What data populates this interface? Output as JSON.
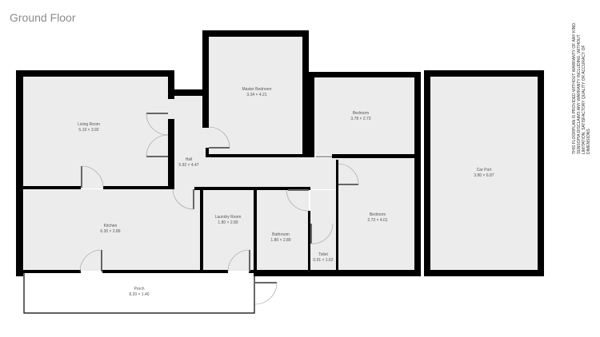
{
  "title": "Ground Floor",
  "disclaimer": "THIS FLOORPLAN IS PROVIDED WITHOUT WARRANTY OF ANY KIND. SENSOPIA DISCLAIMS ANY WARRANTY INCLUDING, WITHOUT LIMITATION, SATISFACTORY QUALITY OR ACCURACY OF DIMENSIONS.",
  "rooms": {
    "living": {
      "name": "Living Room",
      "dims": "5.19 × 3.92"
    },
    "master": {
      "name": "Master Bedroom",
      "dims": "3.34 × 4.21"
    },
    "bedroom1": {
      "name": "Bedroom",
      "dims": "3.78 × 2.73"
    },
    "hall": {
      "name": "Hall",
      "dims": "5.92 × 4.47"
    },
    "kitchen": {
      "name": "Kitchen",
      "dims": "6.30 × 2.89"
    },
    "laundry": {
      "name": "Laundry Room",
      "dims": "1.80 × 2.89"
    },
    "bathroom": {
      "name": "Bathroom",
      "dims": "1.80 × 2.89"
    },
    "toilet": {
      "name": "Toilet",
      "dims": "0.91 × 1.62"
    },
    "bedroom2": {
      "name": "Bedroom",
      "dims": "2.73 × 4.01"
    },
    "porch": {
      "name": "Porch",
      "dims": "8.20 × 1.40"
    },
    "carport": {
      "name": "Car Port",
      "dims": "3.80 × 6.87"
    }
  }
}
